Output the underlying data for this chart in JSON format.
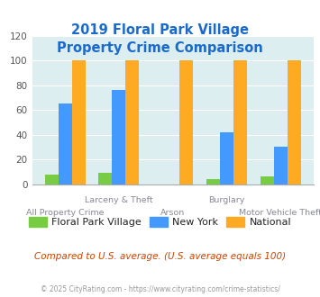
{
  "title": "2019 Floral Park Village\nProperty Crime Comparison",
  "categories": [
    "All Property Crime",
    "Larceny & Theft",
    "Arson",
    "Burglary",
    "Motor Vehicle Theft"
  ],
  "fpv_values": [
    8,
    9,
    0,
    4,
    6
  ],
  "ny_values": [
    65,
    76,
    0,
    42,
    30
  ],
  "national_values": [
    100,
    100,
    100,
    100,
    100
  ],
  "color_fpv": "#77cc44",
  "color_ny": "#4499ff",
  "color_national": "#ffaa22",
  "ylim": [
    0,
    120
  ],
  "yticks": [
    0,
    20,
    40,
    60,
    80,
    100,
    120
  ],
  "background_color": "#ddeef0",
  "title_color": "#1a6acc",
  "legend_labels": [
    "Floral Park Village",
    "New York",
    "National"
  ],
  "footer_text": "Compared to U.S. average. (U.S. average equals 100)",
  "copyright_text": "© 2025 CityRating.com - https://www.cityrating.com/crime-statistics/",
  "footer_color": "#cc4400",
  "copyright_color": "#999999",
  "xlabel_top": [
    "",
    "Larceny & Theft",
    "",
    "Burglary",
    ""
  ],
  "xlabel_bottom": [
    "All Property Crime",
    "",
    "Arson",
    "",
    "Motor Vehicle Theft"
  ]
}
